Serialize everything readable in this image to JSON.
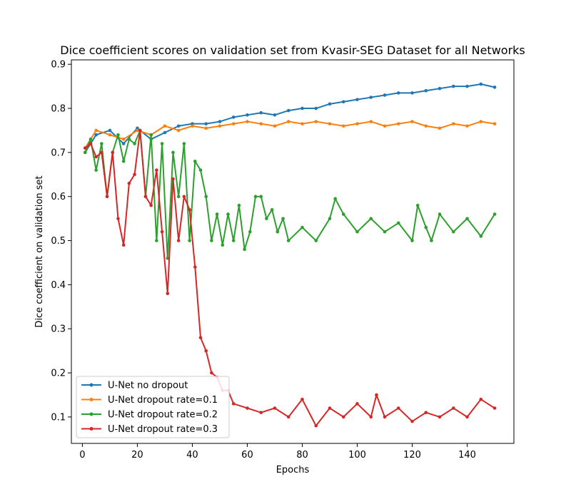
{
  "chart_data": {
    "type": "line",
    "title": "Dice coefficient scores on validation set from Kvasir-SEG Dataset for all Networks",
    "xlabel": "Epochs",
    "ylabel": "Dice coefficient on validation set",
    "xlim": [
      -4,
      157
    ],
    "ylim": [
      0.04,
      0.91
    ],
    "xticks": [
      0,
      20,
      40,
      60,
      80,
      100,
      120,
      140
    ],
    "yticks": [
      0.1,
      0.2,
      0.3,
      0.4,
      0.5,
      0.6,
      0.7,
      0.8,
      0.9
    ],
    "grid": false,
    "legend_position": "lower-left",
    "series": [
      {
        "name": "U-Net no dropout",
        "color": "#1f77b4",
        "x": [
          1,
          5,
          10,
          15,
          20,
          25,
          30,
          35,
          40,
          45,
          50,
          55,
          60,
          65,
          70,
          75,
          80,
          85,
          90,
          95,
          100,
          105,
          110,
          115,
          120,
          125,
          130,
          135,
          140,
          145,
          150
        ],
        "y": [
          0.7,
          0.74,
          0.75,
          0.72,
          0.755,
          0.73,
          0.745,
          0.76,
          0.765,
          0.765,
          0.77,
          0.78,
          0.785,
          0.79,
          0.785,
          0.795,
          0.8,
          0.8,
          0.81,
          0.815,
          0.82,
          0.825,
          0.83,
          0.835,
          0.835,
          0.84,
          0.845,
          0.85,
          0.85,
          0.855,
          0.848
        ]
      },
      {
        "name": "U-Net dropout rate=0.1",
        "color": "#ff7f0e",
        "x": [
          1,
          5,
          10,
          15,
          20,
          25,
          30,
          35,
          40,
          45,
          50,
          55,
          60,
          65,
          70,
          75,
          80,
          85,
          90,
          95,
          100,
          105,
          110,
          115,
          120,
          125,
          130,
          135,
          140,
          145,
          150
        ],
        "y": [
          0.71,
          0.75,
          0.74,
          0.73,
          0.75,
          0.74,
          0.76,
          0.75,
          0.76,
          0.755,
          0.76,
          0.765,
          0.77,
          0.765,
          0.76,
          0.77,
          0.765,
          0.77,
          0.765,
          0.76,
          0.765,
          0.77,
          0.76,
          0.765,
          0.77,
          0.76,
          0.755,
          0.765,
          0.76,
          0.77,
          0.765
        ]
      },
      {
        "name": "U-Net dropout rate=0.2",
        "color": "#2ca02c",
        "x": [
          1,
          3,
          5,
          7,
          9,
          11,
          13,
          15,
          17,
          19,
          21,
          23,
          25,
          27,
          29,
          31,
          33,
          35,
          37,
          39,
          41,
          43,
          45,
          47,
          49,
          51,
          53,
          55,
          57,
          59,
          61,
          63,
          65,
          67,
          69,
          71,
          73,
          75,
          80,
          85,
          90,
          92,
          95,
          100,
          105,
          110,
          115,
          120,
          122,
          125,
          127,
          130,
          135,
          140,
          145,
          150
        ],
        "y": [
          0.7,
          0.73,
          0.66,
          0.72,
          0.6,
          0.7,
          0.74,
          0.68,
          0.73,
          0.72,
          0.75,
          0.6,
          0.74,
          0.5,
          0.72,
          0.46,
          0.7,
          0.6,
          0.72,
          0.5,
          0.68,
          0.66,
          0.6,
          0.5,
          0.56,
          0.49,
          0.56,
          0.5,
          0.58,
          0.48,
          0.52,
          0.6,
          0.6,
          0.55,
          0.57,
          0.52,
          0.55,
          0.5,
          0.53,
          0.5,
          0.55,
          0.595,
          0.56,
          0.52,
          0.55,
          0.52,
          0.54,
          0.5,
          0.58,
          0.53,
          0.5,
          0.56,
          0.52,
          0.55,
          0.51,
          0.56
        ]
      },
      {
        "name": "U-Net dropout rate=0.3",
        "color": "#d62728",
        "x": [
          1,
          3,
          5,
          7,
          9,
          11,
          13,
          15,
          17,
          19,
          21,
          23,
          25,
          27,
          29,
          31,
          33,
          35,
          37,
          39,
          41,
          43,
          45,
          47,
          49,
          51,
          53,
          55,
          60,
          65,
          70,
          75,
          80,
          85,
          90,
          95,
          100,
          105,
          107,
          110,
          115,
          120,
          125,
          130,
          135,
          140,
          145,
          150
        ],
        "y": [
          0.71,
          0.72,
          0.69,
          0.7,
          0.6,
          0.7,
          0.55,
          0.49,
          0.63,
          0.65,
          0.75,
          0.6,
          0.58,
          0.66,
          0.52,
          0.38,
          0.64,
          0.5,
          0.6,
          0.57,
          0.44,
          0.28,
          0.25,
          0.2,
          0.19,
          0.16,
          0.16,
          0.13,
          0.12,
          0.11,
          0.12,
          0.1,
          0.14,
          0.08,
          0.12,
          0.1,
          0.13,
          0.1,
          0.15,
          0.1,
          0.12,
          0.09,
          0.11,
          0.1,
          0.12,
          0.1,
          0.14,
          0.12
        ]
      }
    ]
  }
}
